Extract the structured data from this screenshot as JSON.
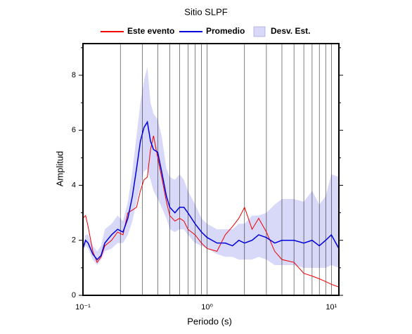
{
  "chart_data": {
    "type": "line",
    "title": "Sitio SLPF",
    "xlabel": "Periodo (s)",
    "ylabel": "Amplitud",
    "xscale": "log",
    "grid": true,
    "xlim": [
      0.1,
      11.5
    ],
    "xticks": [
      {
        "value": 0.1,
        "label": "10⁻¹"
      },
      {
        "value": 1,
        "label": "10⁰"
      },
      {
        "value": 10,
        "label": "10¹"
      }
    ],
    "xminorticks": [
      0.2,
      0.3,
      0.4,
      0.5,
      0.6,
      0.7,
      0.8,
      0.9,
      2,
      3,
      4,
      5,
      6,
      7,
      8,
      9
    ],
    "ylim": [
      0,
      9.15
    ],
    "yticks": [
      0,
      2,
      4,
      6,
      8
    ],
    "yminorticks": [
      1,
      3,
      5,
      7,
      9
    ],
    "x": [
      0.1,
      0.105,
      0.11,
      0.12,
      0.13,
      0.14,
      0.15,
      0.17,
      0.19,
      0.21,
      0.23,
      0.25,
      0.27,
      0.29,
      0.31,
      0.33,
      0.35,
      0.37,
      0.4,
      0.43,
      0.47,
      0.5,
      0.55,
      0.6,
      0.65,
      0.7,
      0.8,
      0.9,
      1.0,
      1.2,
      1.4,
      1.6,
      1.8,
      2.0,
      2.3,
      2.6,
      3.0,
      3.5,
      4,
      5,
      6,
      7,
      8,
      9,
      10,
      11.5
    ],
    "band": {
      "name": "Desv. Est.",
      "color": "#d8d8f8",
      "lower": [
        1.6,
        1.8,
        1.7,
        1.3,
        1.1,
        1.3,
        1.6,
        1.7,
        1.9,
        1.9,
        2.2,
        2.7,
        3.4,
        4.0,
        4.5,
        4.6,
        4.2,
        3.8,
        3.5,
        3.2,
        2.8,
        2.4,
        2.3,
        2.4,
        2.4,
        2.2,
        1.9,
        1.8,
        1.7,
        1.5,
        1.4,
        1.4,
        1.3,
        1.3,
        1.3,
        1.4,
        1.3,
        1.1,
        1.1,
        1.1,
        1.0,
        1.0,
        1.0,
        1.0,
        1.1,
        1.0
      ],
      "upper": [
        1.8,
        2.2,
        2.2,
        1.8,
        1.6,
        1.8,
        2.4,
        2.6,
        2.9,
        2.7,
        3.4,
        4.5,
        5.8,
        7.0,
        7.8,
        8.3,
        7.0,
        6.6,
        6.4,
        5.8,
        4.6,
        4.3,
        4.2,
        4.4,
        4.2,
        3.8,
        3.3,
        2.8,
        2.6,
        2.4,
        2.4,
        2.4,
        2.6,
        2.6,
        2.9,
        2.9,
        3.0,
        3.3,
        3.5,
        3.5,
        3.4,
        3.8,
        3.3,
        3.6,
        4.4,
        4.3
      ]
    },
    "series": [
      {
        "name": "Este evento",
        "color": "#ee0000",
        "values": [
          2.8,
          2.9,
          2.5,
          1.6,
          1.2,
          1.4,
          1.8,
          2.0,
          2.3,
          2.2,
          3.0,
          3.1,
          3.2,
          3.8,
          4.2,
          4.3,
          5.3,
          5.8,
          5.0,
          4.3,
          3.4,
          2.9,
          2.7,
          2.8,
          2.7,
          2.4,
          2.2,
          1.9,
          1.7,
          1.6,
          2.2,
          2.5,
          2.8,
          3.2,
          2.4,
          2.8,
          2.3,
          1.6,
          1.3,
          1.2,
          0.8,
          0.7,
          0.6,
          0.5,
          0.4,
          0.3
        ]
      },
      {
        "name": "Promedio",
        "color": "#0000dd",
        "values": [
          1.7,
          2.0,
          1.9,
          1.5,
          1.3,
          1.45,
          1.9,
          2.2,
          2.4,
          2.3,
          2.8,
          3.6,
          4.6,
          5.6,
          6.1,
          6.3,
          5.6,
          5.3,
          5.2,
          4.5,
          3.6,
          3.2,
          3.0,
          3.2,
          3.2,
          3.0,
          2.6,
          2.3,
          2.1,
          1.9,
          1.9,
          1.8,
          2.0,
          1.9,
          2.0,
          2.2,
          2.1,
          1.9,
          2.0,
          2.0,
          1.9,
          2.0,
          1.8,
          2.0,
          2.2,
          1.7
        ]
      }
    ]
  }
}
